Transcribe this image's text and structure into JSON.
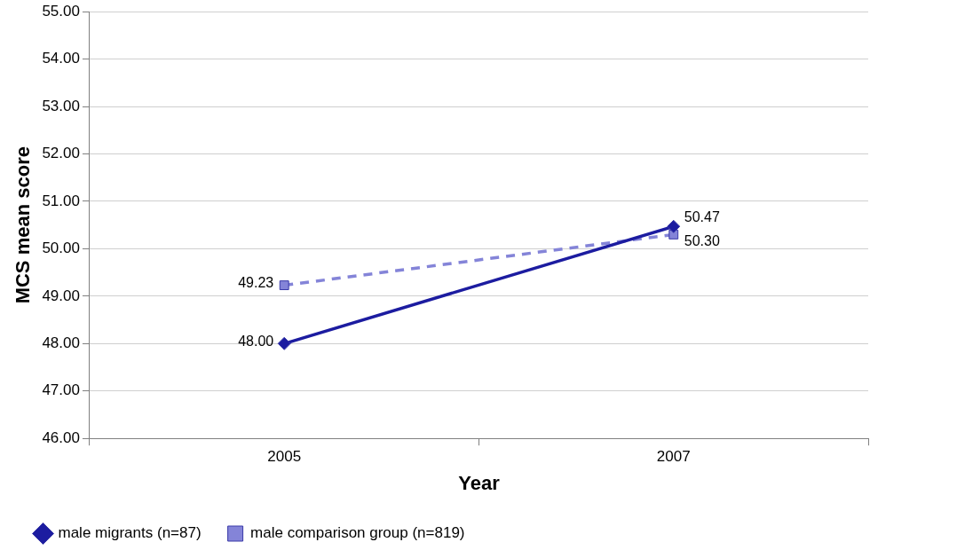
{
  "chart_data": {
    "type": "line",
    "xlabel": "Year",
    "ylabel": "MCS mean score",
    "categories": [
      "2005",
      "2007"
    ],
    "series": [
      {
        "name": "male migrants (n=87)",
        "color": "#1c1ca0",
        "values": [
          48.0,
          50.47
        ],
        "value_labels": [
          "48.00",
          "50.47"
        ],
        "marker": "diamond",
        "line_style": "solid"
      },
      {
        "name": "male comparison group (n=819)",
        "color": "#8484d8",
        "values": [
          49.23,
          50.3
        ],
        "value_labels": [
          "49.23",
          "50.30"
        ],
        "marker": "square",
        "line_style": "dashed"
      }
    ],
    "ylim": [
      46,
      55
    ],
    "yticks": [
      {
        "value": 46,
        "label": "46.00"
      },
      {
        "value": 47,
        "label": "47.00"
      },
      {
        "value": 48,
        "label": "48.00"
      },
      {
        "value": 49,
        "label": "49.00"
      },
      {
        "value": 50,
        "label": "50.00"
      },
      {
        "value": 51,
        "label": "51.00"
      },
      {
        "value": 52,
        "label": "52.00"
      },
      {
        "value": 53,
        "label": "53.00"
      },
      {
        "value": 54,
        "label": "54.00"
      },
      {
        "value": 55,
        "label": "55.00"
      }
    ],
    "grid": "y",
    "legend": "bottom"
  }
}
